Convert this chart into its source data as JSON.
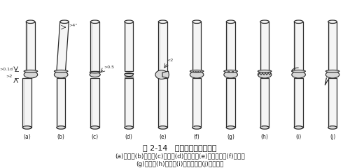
{
  "title": "图 2-14   电渣压力焊接头缺陷",
  "caption_line1": "(a)偏心；(b)倾斜；(c)咬边；(d)未熔合；(e)焊包不匀；(f)气孔；",
  "caption_line2": "(g)烧伤；(h)夹渣；(i)焊包上翘；(j)焊包下流",
  "bg_color": "#ffffff",
  "labels": [
    "(a)",
    "(b)",
    "(c)",
    "(d)",
    "(e)",
    "(f)",
    "(g)",
    "(h)",
    "(i)",
    "(j)"
  ],
  "fig_width": 5.0,
  "fig_height": 2.41,
  "dpi": 100
}
